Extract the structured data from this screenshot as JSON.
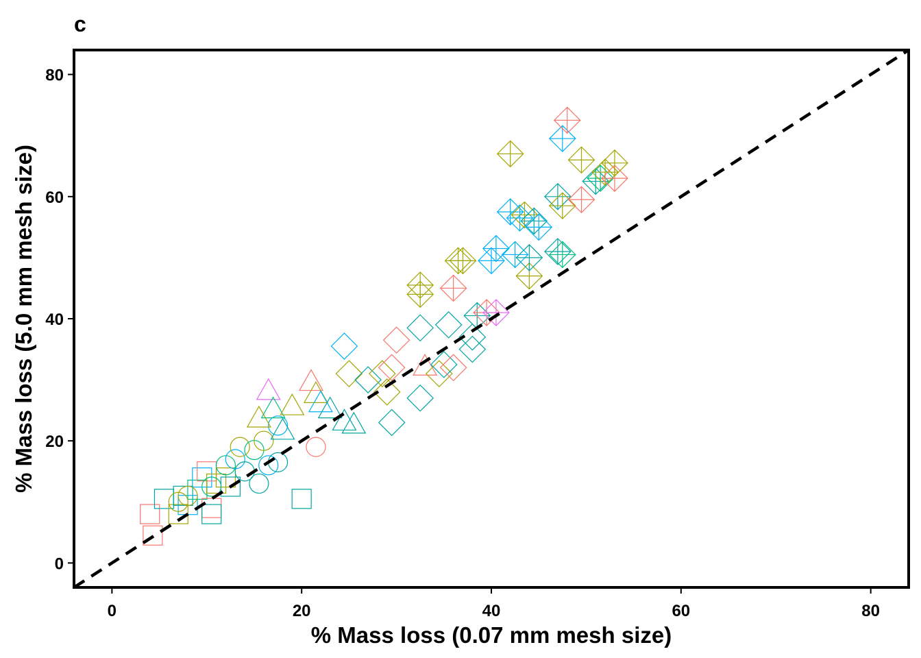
{
  "chart_data": {
    "type": "scatter",
    "panel_label": "c",
    "title": "",
    "xlabel": "% Mass loss (0.07 mm mesh size)",
    "ylabel": "% Mass loss (5.0 mm mesh size)",
    "xlim": [
      -4,
      84
    ],
    "ylim": [
      -4,
      84
    ],
    "xticks": [
      0,
      20,
      40,
      60,
      80
    ],
    "yticks": [
      0,
      20,
      40,
      60,
      80
    ],
    "xtick_labels": [
      "0",
      "20",
      "40",
      "60",
      "80"
    ],
    "ytick_labels": [
      "0",
      "20",
      "40",
      "60",
      "80"
    ],
    "grid": false,
    "legend": "none",
    "reference_line": {
      "x": [
        -4,
        84
      ],
      "y": [
        -4,
        84
      ],
      "style": "dashed",
      "color": "#000000"
    },
    "colors": {
      "red": "#F8766D",
      "olive": "#A3A500",
      "green": "#00BF7D",
      "blue": "#00B0F6",
      "teal": "#00A5A3",
      "magenta": "#E76BF3"
    },
    "points": [
      {
        "x": 4,
        "y": 8,
        "shape": "square",
        "color": "red"
      },
      {
        "x": 4.3,
        "y": 4.5,
        "shape": "square",
        "color": "red"
      },
      {
        "x": 5.5,
        "y": 10.5,
        "shape": "square",
        "color": "teal"
      },
      {
        "x": 7,
        "y": 8,
        "shape": "square",
        "color": "olive"
      },
      {
        "x": 7.5,
        "y": 11,
        "shape": "square",
        "color": "teal"
      },
      {
        "x": 8,
        "y": 9.5,
        "shape": "square",
        "color": "blue"
      },
      {
        "x": 9,
        "y": 12,
        "shape": "square",
        "color": "green"
      },
      {
        "x": 9.5,
        "y": 14,
        "shape": "square",
        "color": "blue"
      },
      {
        "x": 10,
        "y": 15,
        "shape": "square",
        "color": "red"
      },
      {
        "x": 10.5,
        "y": 9,
        "shape": "square",
        "color": "red"
      },
      {
        "x": 10.5,
        "y": 8,
        "shape": "square",
        "color": "teal"
      },
      {
        "x": 11,
        "y": 13,
        "shape": "square",
        "color": "olive"
      },
      {
        "x": 12,
        "y": 14,
        "shape": "square",
        "color": "olive"
      },
      {
        "x": 12.5,
        "y": 12.5,
        "shape": "square",
        "color": "teal"
      },
      {
        "x": 20,
        "y": 10.5,
        "shape": "square",
        "color": "teal"
      },
      {
        "x": 7,
        "y": 10,
        "shape": "circle",
        "color": "olive"
      },
      {
        "x": 8,
        "y": 11,
        "shape": "circle",
        "color": "olive"
      },
      {
        "x": 10.5,
        "y": 12.5,
        "shape": "circle",
        "color": "green"
      },
      {
        "x": 12,
        "y": 16,
        "shape": "circle",
        "color": "green"
      },
      {
        "x": 13,
        "y": 17,
        "shape": "circle",
        "color": "blue"
      },
      {
        "x": 13.5,
        "y": 19,
        "shape": "circle",
        "color": "olive"
      },
      {
        "x": 14,
        "y": 15,
        "shape": "circle",
        "color": "teal"
      },
      {
        "x": 15,
        "y": 18.5,
        "shape": "circle",
        "color": "green"
      },
      {
        "x": 15.5,
        "y": 13,
        "shape": "circle",
        "color": "teal"
      },
      {
        "x": 16,
        "y": 20,
        "shape": "circle",
        "color": "olive"
      },
      {
        "x": 16.5,
        "y": 16,
        "shape": "circle",
        "color": "blue"
      },
      {
        "x": 17.5,
        "y": 16.5,
        "shape": "circle",
        "color": "teal"
      },
      {
        "x": 17.5,
        "y": 22.5,
        "shape": "circle",
        "color": "blue"
      },
      {
        "x": 21.5,
        "y": 19,
        "shape": "circle",
        "color": "red"
      },
      {
        "x": 16.5,
        "y": 28,
        "shape": "triangle",
        "color": "magenta"
      },
      {
        "x": 15.5,
        "y": 23.5,
        "shape": "triangle",
        "color": "olive"
      },
      {
        "x": 17,
        "y": 25,
        "shape": "triangle",
        "color": "green"
      },
      {
        "x": 18,
        "y": 21.5,
        "shape": "triangle",
        "color": "teal"
      },
      {
        "x": 19,
        "y": 25.5,
        "shape": "triangle",
        "color": "olive"
      },
      {
        "x": 21,
        "y": 29.5,
        "shape": "triangle",
        "color": "red"
      },
      {
        "x": 21.5,
        "y": 27.5,
        "shape": "triangle",
        "color": "olive"
      },
      {
        "x": 22,
        "y": 26,
        "shape": "triangle",
        "color": "blue"
      },
      {
        "x": 23,
        "y": 25,
        "shape": "triangle",
        "color": "teal"
      },
      {
        "x": 24.5,
        "y": 23,
        "shape": "triangle",
        "color": "teal"
      },
      {
        "x": 25.5,
        "y": 22.5,
        "shape": "triangle",
        "color": "teal"
      },
      {
        "x": 33,
        "y": 32,
        "shape": "triangle",
        "color": "red"
      },
      {
        "x": 24.5,
        "y": 35.5,
        "shape": "diamond",
        "color": "blue"
      },
      {
        "x": 25,
        "y": 31,
        "shape": "diamond",
        "color": "olive"
      },
      {
        "x": 27,
        "y": 30,
        "shape": "diamond",
        "color": "teal"
      },
      {
        "x": 28.5,
        "y": 31,
        "shape": "diamond",
        "color": "olive"
      },
      {
        "x": 29,
        "y": 28,
        "shape": "diamond",
        "color": "olive"
      },
      {
        "x": 29.5,
        "y": 32,
        "shape": "diamond",
        "color": "red"
      },
      {
        "x": 30,
        "y": 36.5,
        "shape": "diamond",
        "color": "red"
      },
      {
        "x": 29.5,
        "y": 23,
        "shape": "diamond",
        "color": "teal"
      },
      {
        "x": 32.5,
        "y": 27,
        "shape": "diamond",
        "color": "teal"
      },
      {
        "x": 32.5,
        "y": 38.5,
        "shape": "diamond",
        "color": "teal"
      },
      {
        "x": 34.5,
        "y": 31,
        "shape": "diamond",
        "color": "olive"
      },
      {
        "x": 35,
        "y": 32.5,
        "shape": "diamond",
        "color": "teal"
      },
      {
        "x": 35.5,
        "y": 39,
        "shape": "diamond",
        "color": "teal"
      },
      {
        "x": 36,
        "y": 32,
        "shape": "diamond",
        "color": "red"
      },
      {
        "x": 38,
        "y": 35,
        "shape": "diamond",
        "color": "teal"
      },
      {
        "x": 38,
        "y": 37,
        "shape": "diamond",
        "color": "teal"
      },
      {
        "x": 32.5,
        "y": 45.5,
        "shape": "diamond-plus",
        "color": "olive"
      },
      {
        "x": 32.5,
        "y": 44,
        "shape": "diamond-plus",
        "color": "olive"
      },
      {
        "x": 36,
        "y": 45,
        "shape": "diamond-plus",
        "color": "red"
      },
      {
        "x": 36.5,
        "y": 49.5,
        "shape": "diamond-plus",
        "color": "olive"
      },
      {
        "x": 37,
        "y": 49.5,
        "shape": "diamond-plus",
        "color": "olive"
      },
      {
        "x": 38.5,
        "y": 40.5,
        "shape": "diamond-plus",
        "color": "teal"
      },
      {
        "x": 39.5,
        "y": 41,
        "shape": "diamond-plus",
        "color": "red"
      },
      {
        "x": 40.5,
        "y": 41,
        "shape": "diamond-plus",
        "color": "magenta"
      },
      {
        "x": 40,
        "y": 49.5,
        "shape": "diamond-plus",
        "color": "blue"
      },
      {
        "x": 40.5,
        "y": 51.5,
        "shape": "diamond-plus",
        "color": "blue"
      },
      {
        "x": 42,
        "y": 67,
        "shape": "diamond-plus",
        "color": "olive"
      },
      {
        "x": 42,
        "y": 57.5,
        "shape": "diamond-plus",
        "color": "blue"
      },
      {
        "x": 42.5,
        "y": 50.5,
        "shape": "diamond-plus",
        "color": "blue"
      },
      {
        "x": 43,
        "y": 56.5,
        "shape": "diamond-plus",
        "color": "blue"
      },
      {
        "x": 43.5,
        "y": 57,
        "shape": "diamond-plus",
        "color": "olive"
      },
      {
        "x": 44,
        "y": 47,
        "shape": "diamond-plus",
        "color": "olive"
      },
      {
        "x": 44,
        "y": 50,
        "shape": "diamond-plus",
        "color": "teal"
      },
      {
        "x": 44.5,
        "y": 56,
        "shape": "diamond-plus",
        "color": "teal"
      },
      {
        "x": 45,
        "y": 55,
        "shape": "diamond-plus",
        "color": "blue"
      },
      {
        "x": 47,
        "y": 60,
        "shape": "diamond-plus",
        "color": "teal"
      },
      {
        "x": 47,
        "y": 51,
        "shape": "diamond-plus",
        "color": "teal"
      },
      {
        "x": 47.5,
        "y": 50.5,
        "shape": "diamond-plus",
        "color": "green"
      },
      {
        "x": 47.5,
        "y": 58.5,
        "shape": "diamond-plus",
        "color": "olive"
      },
      {
        "x": 47.5,
        "y": 69.5,
        "shape": "diamond-plus",
        "color": "blue"
      },
      {
        "x": 48,
        "y": 72.5,
        "shape": "diamond-plus",
        "color": "red"
      },
      {
        "x": 49.5,
        "y": 66,
        "shape": "diamond-plus",
        "color": "olive"
      },
      {
        "x": 49.5,
        "y": 59.5,
        "shape": "diamond-plus",
        "color": "red"
      },
      {
        "x": 51,
        "y": 62.5,
        "shape": "diamond-plus",
        "color": "teal"
      },
      {
        "x": 51.5,
        "y": 63,
        "shape": "diamond-plus",
        "color": "green"
      },
      {
        "x": 52,
        "y": 64,
        "shape": "diamond-plus",
        "color": "olive"
      },
      {
        "x": 53,
        "y": 63,
        "shape": "diamond-plus",
        "color": "red"
      },
      {
        "x": 53,
        "y": 65.5,
        "shape": "diamond-plus",
        "color": "olive"
      }
    ]
  }
}
